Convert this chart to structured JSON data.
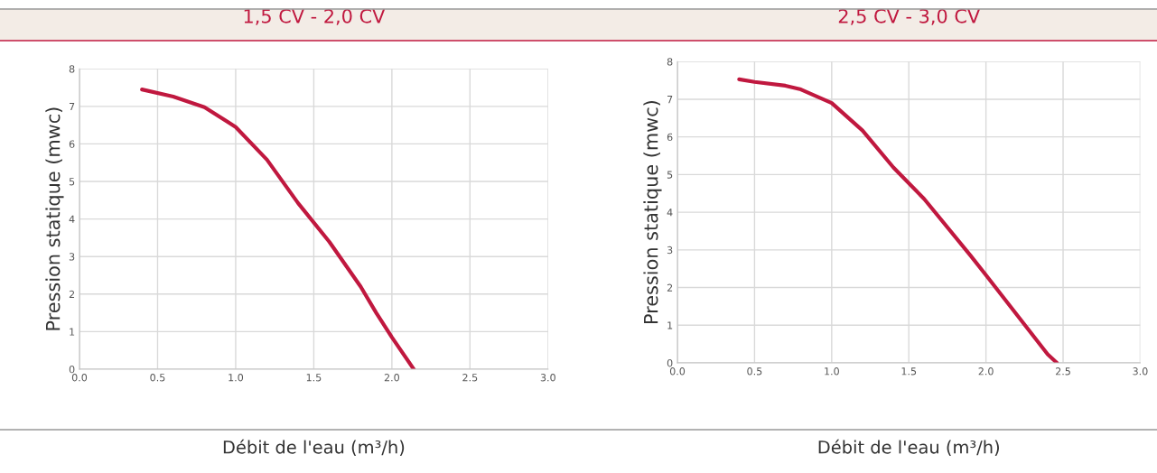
{
  "chart_data": [
    {
      "type": "line",
      "title": "1,5 CV - 2,0 CV",
      "xlabel": "Débit de l'eau (m³/h)",
      "ylabel": "Pression statique (mwc)",
      "xlim": [
        0.0,
        3.0
      ],
      "xticks": [
        {
          "value": 0,
          "label": "0.0"
        },
        0.5,
        {
          "value": 1,
          "label": "1.0"
        },
        1.5,
        {
          "value": 2,
          "label": "2.0"
        },
        2.5,
        {
          "value": 3,
          "label": "3.0"
        }
      ],
      "ylim": [
        0,
        8
      ],
      "yticks": [
        0,
        1,
        2,
        3,
        4,
        5,
        6,
        7,
        8
      ],
      "grid": true,
      "series": [
        {
          "color": "#c0183f",
          "x": [
            0.4,
            0.6,
            0.8,
            1.0,
            1.2,
            1.4,
            1.6,
            1.8,
            1.9,
            2.0,
            2.14
          ],
          "values": [
            7.45,
            7.26,
            6.98,
            6.45,
            5.58,
            4.42,
            3.39,
            2.2,
            1.5,
            0.85,
            0
          ]
        }
      ]
    },
    {
      "type": "line",
      "title": "2,5 CV - 3,0 CV",
      "xlabel": "Débit de l'eau (m³/h)",
      "ylabel": "Pression statique (mwc)",
      "xlim": [
        0.0,
        3.0
      ],
      "xticks": [
        {
          "value": 0,
          "label": "0.0"
        },
        0.5,
        {
          "value": 1,
          "label": "1.0"
        },
        1.5,
        {
          "value": 2,
          "label": "2.0"
        },
        2.5,
        {
          "value": 3,
          "label": "3.0"
        }
      ],
      "ylim": [
        0,
        8
      ],
      "yticks": [
        0,
        1,
        2,
        3,
        4,
        5,
        6,
        7,
        8
      ],
      "grid": true,
      "series": [
        {
          "color": "#c0183f",
          "x": [
            0.4,
            0.5,
            0.7,
            0.8,
            1.0,
            1.2,
            1.4,
            1.6,
            1.9,
            2.0,
            2.4,
            2.46
          ],
          "values": [
            7.53,
            7.46,
            7.36,
            7.26,
            6.9,
            6.17,
            5.19,
            4.35,
            2.85,
            2.33,
            0.23,
            0
          ]
        }
      ]
    }
  ]
}
